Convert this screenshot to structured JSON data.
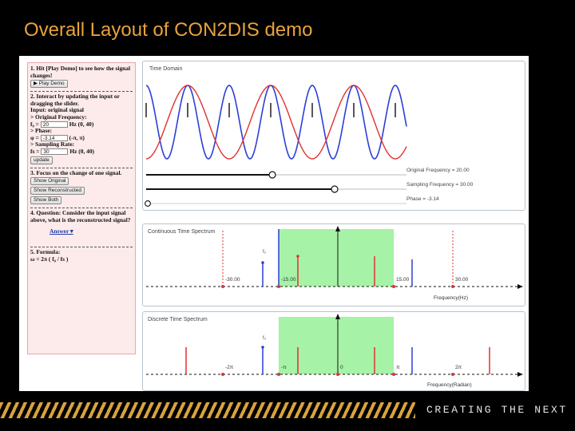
{
  "slide": {
    "title": "Overall Layout of CON2DIS demo",
    "tagline": "CREATING THE NEXT"
  },
  "panel": {
    "step1": "1. Hit [Play Demo] to see how the signal changes!",
    "play_button": "▶ Play Demo",
    "step2": "2. Interact by updating the input or dragging the slider.",
    "input_heading": "Input: original signal",
    "freq_heading": "> Original Frequency:",
    "freq_label": "f₀ =",
    "freq_value": "20",
    "freq_range": "Hz (0, 40)",
    "phase_heading": "> Phase:",
    "phase_label": "φ =",
    "phase_value": "-3.14",
    "phase_range": "(-π, π)",
    "rate_heading": "> Sampling Rate:",
    "rate_label": "fs =",
    "rate_value": "30",
    "rate_range": "Hz (0, 40)",
    "update_button": "update",
    "step3": "3. Focus on the change of one signal.",
    "show_original": "Show Original",
    "show_reconstructed": "Show Reconstructed",
    "show_both": "Show Both",
    "step4": "4. Question: Consider the input signal above, what is the reconstructed signal?",
    "answer_link": "Answer ▾",
    "step5": "5. Formula:",
    "formula": "ω = 2π ( f₀ / fs )"
  },
  "time_domain": {
    "title": "Time Domain",
    "original_frequency": "Original Frequency = 20.00",
    "sampling_frequency": "Sampling Frequency = 30.00",
    "phase": "Phase = -3.14",
    "colors": {
      "original": "#2b3fd6",
      "reconstructed": "#e03131",
      "sample": "#111111"
    }
  },
  "continuous_spectrum": {
    "title": "Continuous Time Spectrum",
    "f0_label": "f₀",
    "tick_labels": [
      "-30.00",
      "-15.00",
      "15.00",
      "30.00"
    ],
    "xlabel": "Frequency(Hz)",
    "band_color": "#a6f2a6"
  },
  "discrete_spectrum": {
    "title": "Discrete Time Spectrum",
    "f0_label": "f₀",
    "tick_labels": [
      "-2π",
      "-π",
      "0",
      "π",
      "2π"
    ],
    "xlabel": "Frequency(Radian)",
    "band_color": "#a6f2a6"
  }
}
